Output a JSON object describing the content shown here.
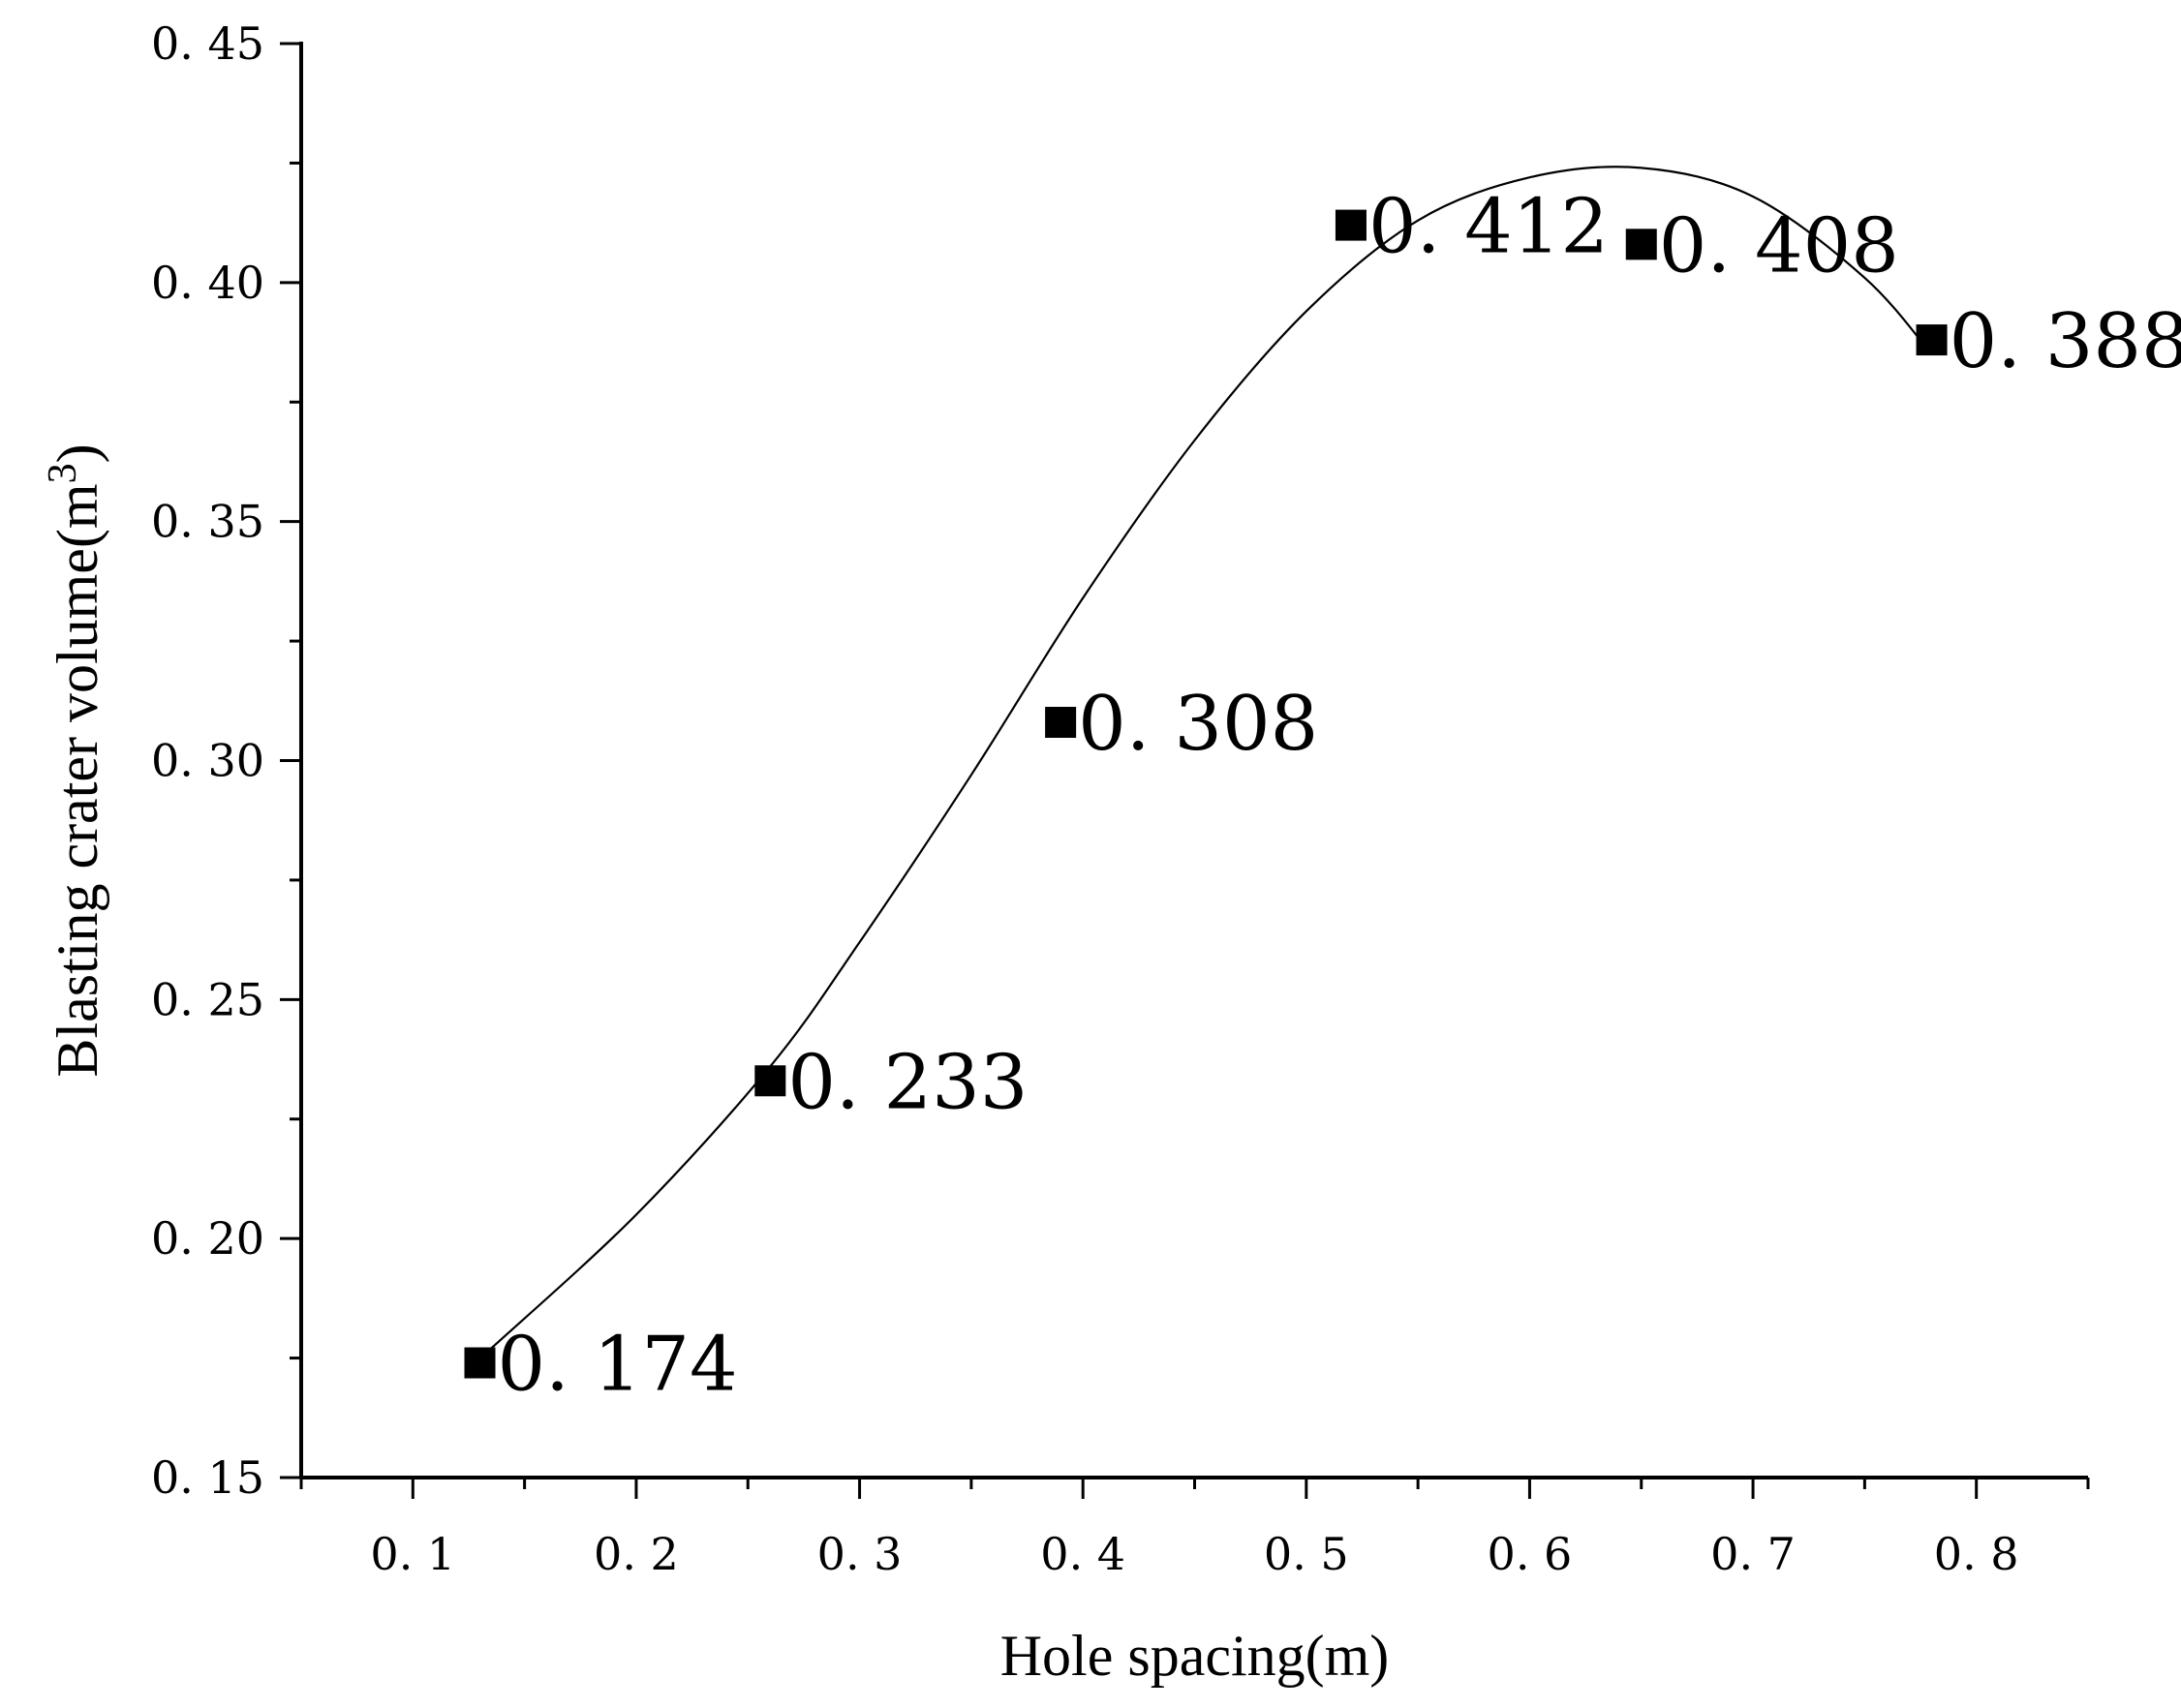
{
  "chart_data": {
    "type": "scatter",
    "title": "",
    "xlabel": "Hole spacing(m)",
    "ylabel_main": "Blasting crater volume(m",
    "ylabel_sup": "3",
    "ylabel_close": ")",
    "xlim": [
      0.05,
      0.85
    ],
    "ylim": [
      0.15,
      0.45
    ],
    "x_ticks": [
      0.1,
      0.2,
      0.3,
      0.4,
      0.5,
      0.6,
      0.7,
      0.8
    ],
    "x_tick_labels": [
      "0. 1",
      "0. 2",
      "0. 3",
      "0. 4",
      "0. 5",
      "0. 6",
      "0. 7",
      "0. 8"
    ],
    "x_minor_ticks": [
      0.05,
      0.15,
      0.25,
      0.35,
      0.45,
      0.55,
      0.65,
      0.75,
      0.85
    ],
    "y_ticks": [
      0.15,
      0.2,
      0.25,
      0.3,
      0.35,
      0.4,
      0.45
    ],
    "y_tick_labels": [
      "0. 15",
      "0. 20",
      "0. 25",
      "0. 30",
      "0. 35",
      "0. 40",
      "0. 45"
    ],
    "y_minor_ticks": [
      0.175,
      0.225,
      0.275,
      0.325,
      0.375,
      0.425
    ],
    "grid": false,
    "legend": "none",
    "marker": "square",
    "color": "#000000",
    "points": [
      {
        "x": 0.13,
        "y": 0.174,
        "label": "0. 174"
      },
      {
        "x": 0.26,
        "y": 0.233,
        "label": "0. 233"
      },
      {
        "x": 0.39,
        "y": 0.308,
        "label": "0. 308"
      },
      {
        "x": 0.52,
        "y": 0.412,
        "label": "0. 412"
      },
      {
        "x": 0.65,
        "y": 0.408,
        "label": "0. 408"
      },
      {
        "x": 0.78,
        "y": 0.388,
        "label": "0. 388"
      }
    ],
    "fit_curve": {
      "type": "smooth",
      "x": [
        0.135,
        0.2,
        0.26,
        0.3,
        0.35,
        0.4,
        0.45,
        0.5,
        0.55,
        0.6,
        0.65,
        0.7,
        0.75,
        0.78
      ],
      "y": [
        0.177,
        0.205,
        0.236,
        0.262,
        0.297,
        0.334,
        0.367,
        0.394,
        0.413,
        0.422,
        0.424,
        0.418,
        0.401,
        0.385
      ]
    }
  }
}
